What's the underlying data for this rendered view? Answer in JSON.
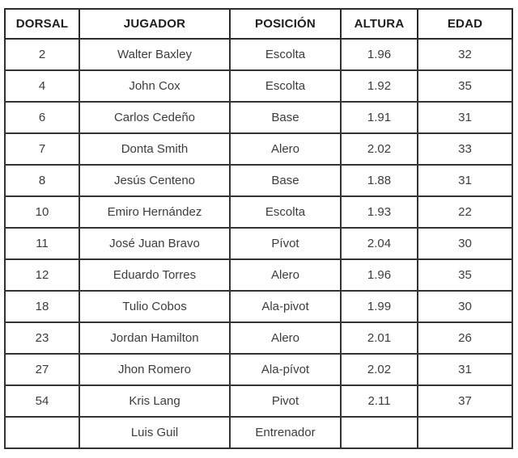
{
  "colors": {
    "background": "#ffffff",
    "outer_border": "#161616",
    "grid_border": "#333333",
    "header_text": "#1d1d1d",
    "body_text": "#3c3c3c"
  },
  "table": {
    "columns": [
      {
        "key": "dorsal",
        "label": "DORSAL"
      },
      {
        "key": "jugador",
        "label": "JUGADOR"
      },
      {
        "key": "posicion",
        "label": "POSICIÓN"
      },
      {
        "key": "altura",
        "label": "ALTURA"
      },
      {
        "key": "edad",
        "label": "EDAD"
      }
    ],
    "rows": [
      {
        "dorsal": "2",
        "jugador": "Walter Baxley",
        "posicion": "Escolta",
        "altura": "1.96",
        "edad": "32"
      },
      {
        "dorsal": "4",
        "jugador": "John Cox",
        "posicion": "Escolta",
        "altura": "1.92",
        "edad": "35"
      },
      {
        "dorsal": "6",
        "jugador": "Carlos Cedeño",
        "posicion": "Base",
        "altura": "1.91",
        "edad": "31"
      },
      {
        "dorsal": "7",
        "jugador": "Donta Smith",
        "posicion": "Alero",
        "altura": "2.02",
        "edad": "33"
      },
      {
        "dorsal": "8",
        "jugador": "Jesús Centeno",
        "posicion": "Base",
        "altura": "1.88",
        "edad": "31"
      },
      {
        "dorsal": "10",
        "jugador": "Emiro Hernández",
        "posicion": "Escolta",
        "altura": "1.93",
        "edad": "22"
      },
      {
        "dorsal": "11",
        "jugador": "José Juan Bravo",
        "posicion": "Pívot",
        "altura": "2.04",
        "edad": "30"
      },
      {
        "dorsal": "12",
        "jugador": "Eduardo Torres",
        "posicion": "Alero",
        "altura": "1.96",
        "edad": "35"
      },
      {
        "dorsal": "18",
        "jugador": "Tulio Cobos",
        "posicion": "Ala-pivot",
        "altura": "1.99",
        "edad": "30"
      },
      {
        "dorsal": "23",
        "jugador": "Jordan Hamilton",
        "posicion": "Alero",
        "altura": "2.01",
        "edad": "26"
      },
      {
        "dorsal": "27",
        "jugador": "Jhon Romero",
        "posicion": "Ala-pívot",
        "altura": "2.02",
        "edad": "31"
      },
      {
        "dorsal": "54",
        "jugador": "Kris Lang",
        "posicion": "Pivot",
        "altura": "2.11",
        "edad": "37"
      },
      {
        "dorsal": "",
        "jugador": "Luis Guil",
        "posicion": "Entrenador",
        "altura": "",
        "edad": ""
      }
    ]
  }
}
